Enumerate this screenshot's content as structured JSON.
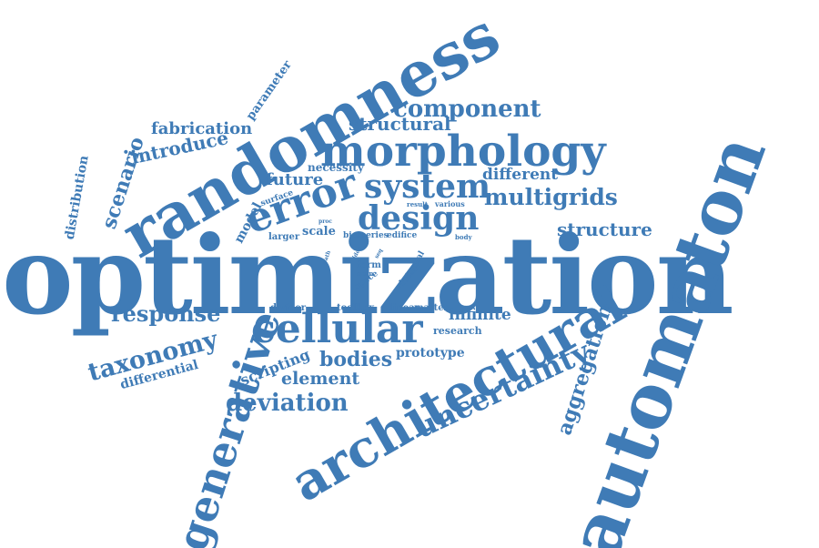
{
  "color": "#3f7bb6",
  "words": [
    {
      "text": "optimization"
    },
    {
      "text": "automaton"
    },
    {
      "text": "randomness"
    },
    {
      "text": "morphology"
    },
    {
      "text": "architectural"
    },
    {
      "text": "generative"
    },
    {
      "text": "cellular"
    },
    {
      "text": "system"
    },
    {
      "text": "design"
    },
    {
      "text": "error"
    },
    {
      "text": "component"
    },
    {
      "text": "multigrids"
    },
    {
      "text": "uncertainty"
    },
    {
      "text": "deviation"
    },
    {
      "text": "taxonomy"
    },
    {
      "text": "response"
    },
    {
      "text": "aggregation"
    },
    {
      "text": "structure"
    },
    {
      "text": "structural"
    },
    {
      "text": "fabrication"
    },
    {
      "text": "introduce"
    },
    {
      "text": "scenario"
    },
    {
      "text": "distribution"
    },
    {
      "text": "parameter"
    },
    {
      "text": "future"
    },
    {
      "text": "necessity"
    },
    {
      "text": "different"
    },
    {
      "text": "bodies"
    },
    {
      "text": "element"
    },
    {
      "text": "scripting"
    },
    {
      "text": "differential"
    },
    {
      "text": "infinite"
    },
    {
      "text": "research"
    },
    {
      "text": "prototype"
    },
    {
      "text": "model"
    },
    {
      "text": "surface"
    },
    {
      "text": "scale"
    },
    {
      "text": "larger"
    },
    {
      "text": "divider"
    },
    {
      "text": "toolbox"
    },
    {
      "text": "linear"
    },
    {
      "text": "matter"
    },
    {
      "text": "form"
    },
    {
      "text": "span"
    },
    {
      "text": "space"
    },
    {
      "text": "detail"
    },
    {
      "text": "formal"
    },
    {
      "text": "bias"
    },
    {
      "text": "series"
    },
    {
      "text": "edifice"
    },
    {
      "text": "body"
    },
    {
      "text": "result"
    },
    {
      "text": "various"
    },
    {
      "text": "proc"
    },
    {
      "text": "path"
    },
    {
      "text": "idea"
    },
    {
      "text": "seq"
    }
  ]
}
